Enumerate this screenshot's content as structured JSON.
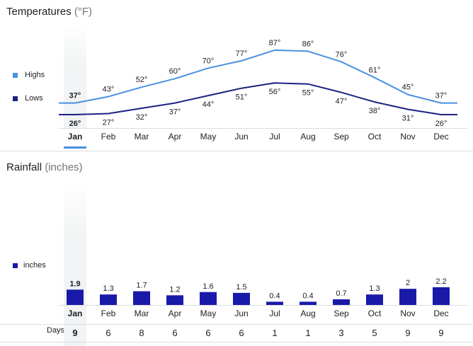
{
  "temperatures": {
    "title": "Temperatures",
    "unit": "(°F)",
    "selected_month": "Jan",
    "chart_data": {
      "type": "line",
      "title": "Temperatures (°F)",
      "categories": [
        "Jan",
        "Feb",
        "Mar",
        "Apr",
        "May",
        "Jun",
        "Jul",
        "Aug",
        "Sep",
        "Oct",
        "Nov",
        "Dec"
      ],
      "series": [
        {
          "name": "Highs",
          "color": "#4a90e2",
          "values": [
            37,
            43,
            52,
            60,
            70,
            77,
            87,
            86,
            76,
            61,
            45,
            37
          ]
        },
        {
          "name": "Lows",
          "color": "#1a237e",
          "values": [
            26,
            27,
            32,
            37,
            44,
            51,
            56,
            55,
            47,
            38,
            31,
            26
          ]
        }
      ],
      "value_suffix": "°",
      "legend": "left",
      "grid": false
    }
  },
  "rainfall": {
    "title": "Rainfall",
    "unit": "(inches)",
    "selected_month": "Jan",
    "chart_data": {
      "type": "bar",
      "title": "Rainfall (inches)",
      "categories": [
        "Jan",
        "Feb",
        "Mar",
        "Apr",
        "May",
        "Jun",
        "Jul",
        "Aug",
        "Sep",
        "Oct",
        "Nov",
        "Dec"
      ],
      "series": [
        {
          "name": "inches",
          "color": "#1a1aa8",
          "values": [
            1.9,
            1.3,
            1.7,
            1.2,
            1.6,
            1.5,
            0.4,
            0.4,
            0.7,
            1.3,
            2,
            2.2
          ]
        }
      ],
      "legend": "left",
      "grid": false
    },
    "days_label": "Days",
    "days": [
      9,
      6,
      8,
      6,
      6,
      6,
      1,
      1,
      3,
      5,
      9,
      9
    ]
  }
}
